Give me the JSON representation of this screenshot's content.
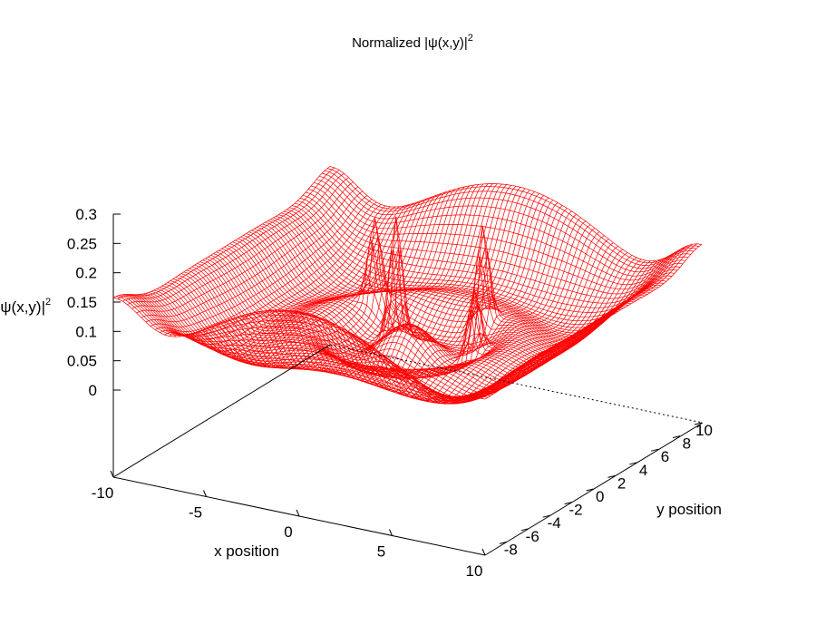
{
  "chart_data": {
    "type": "surface",
    "title": "Normalized |ψ(x,y)|",
    "title_sup": "2",
    "xlabel": "x position",
    "ylabel": "y position",
    "zlabel": "|ψ(x,y)|",
    "zlabel_sup": "2",
    "x_range": [
      -10,
      10
    ],
    "y_range": [
      -10,
      10
    ],
    "z_range": [
      0,
      0.3
    ],
    "x_ticks": [
      -10,
      -5,
      0,
      5,
      10
    ],
    "y_ticks": [
      -8,
      -6,
      -4,
      -2,
      0,
      2,
      4,
      6,
      8,
      10
    ],
    "z_ticks": [
      0,
      0.05,
      0.1,
      0.15,
      0.2,
      0.25,
      0.3
    ],
    "surface_color": "#ff0000",
    "grid": false,
    "legend": "none",
    "features": {
      "edge_ridges": [
        {
          "name": "y=-10 edge",
          "height": 0.2
        },
        {
          "name": "x=10 edge",
          "height": 0.13
        },
        {
          "name": "y=10 edge",
          "height": 0.2
        },
        {
          "name": "x=-10 edge",
          "height": 0.13
        }
      ],
      "peaks": [
        {
          "x": -1.5,
          "y": 1.5,
          "z": 0.33
        },
        {
          "x": 2.0,
          "y": 3.5,
          "z": 0.29
        },
        {
          "x": -3.5,
          "y": 3.0,
          "z": 0.26
        },
        {
          "x": 3.0,
          "y": 1.0,
          "z": 0.24
        }
      ],
      "corner_minima": [
        {
          "x": 10,
          "y": -10,
          "z": 0.0
        }
      ]
    }
  }
}
